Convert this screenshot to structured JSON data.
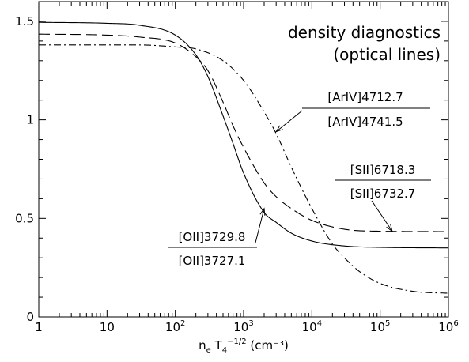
{
  "chart_data": {
    "type": "line",
    "title": "density diagnostics",
    "subtitle": "(optical lines)",
    "xlabel_parts": {
      "n": "n",
      "sub_e": "e",
      "T": " T",
      "sub_4": "4",
      "sup_exp": "−1/2",
      "units": " (cm⁻³)"
    },
    "ylabel": "",
    "xscale": "log",
    "xlim": [
      1,
      1000000
    ],
    "ylim": [
      0,
      1.6
    ],
    "x_ticks": [
      {
        "value": 1,
        "label": "1"
      },
      {
        "value": 10,
        "label": "10"
      },
      {
        "value": 100,
        "base": "10",
        "exp": "2"
      },
      {
        "value": 1000,
        "base": "10",
        "exp": "3"
      },
      {
        "value": 10000,
        "base": "10",
        "exp": "4"
      },
      {
        "value": 100000,
        "base": "10",
        "exp": "5"
      },
      {
        "value": 1000000,
        "base": "10",
        "exp": "6"
      }
    ],
    "y_ticks": [
      {
        "value": 0,
        "label": "0"
      },
      {
        "value": 0.5,
        "label": "0.5"
      },
      {
        "value": 1,
        "label": "1"
      },
      {
        "value": 1.5,
        "label": "1.5"
      }
    ],
    "grid": false,
    "series": [
      {
        "line_style": "solid",
        "x": [
          1,
          10,
          30,
          100,
          200,
          300,
          500,
          700,
          1000,
          2000,
          3000,
          5000,
          10000,
          30000,
          100000,
          1000000
        ],
        "values": [
          1.495,
          1.49,
          1.48,
          1.43,
          1.33,
          1.22,
          1.02,
          0.88,
          0.73,
          0.53,
          0.48,
          0.425,
          0.385,
          0.36,
          0.353,
          0.35
        ]
      },
      {
        "line_style": "dashed",
        "x": [
          1,
          10,
          30,
          100,
          200,
          300,
          500,
          700,
          1000,
          2000,
          3000,
          5000,
          10000,
          30000,
          100000,
          1000000
        ],
        "values": [
          1.435,
          1.43,
          1.42,
          1.39,
          1.32,
          1.25,
          1.09,
          0.97,
          0.86,
          0.68,
          0.61,
          0.55,
          0.49,
          0.445,
          0.435,
          0.433
        ]
      },
      {
        "line_style": "dashdot",
        "x": [
          1,
          10,
          30,
          100,
          200,
          500,
          1000,
          2000,
          3000,
          5000,
          10000,
          20000,
          30000,
          50000,
          100000,
          300000,
          1000000
        ],
        "values": [
          1.38,
          1.38,
          1.38,
          1.37,
          1.36,
          1.3,
          1.2,
          1.04,
          0.93,
          0.76,
          0.55,
          0.37,
          0.3,
          0.23,
          0.17,
          0.13,
          0.12
        ]
      }
    ],
    "annotations": [
      {
        "numerator": "[ArIV]4712.7",
        "denominator": "[ArIV]4741.5",
        "arrow_to": {
          "x": 3000,
          "y": 0.94
        }
      },
      {
        "numerator": "[SII]6718.3",
        "denominator": "[SII]6732.7",
        "arrow_to": {
          "x": 150000,
          "y": 0.435
        }
      },
      {
        "numerator": "[OII]3729.8",
        "denominator": "[OII]3727.1",
        "arrow_to": {
          "x": 2000,
          "y": 0.55
        }
      }
    ]
  }
}
